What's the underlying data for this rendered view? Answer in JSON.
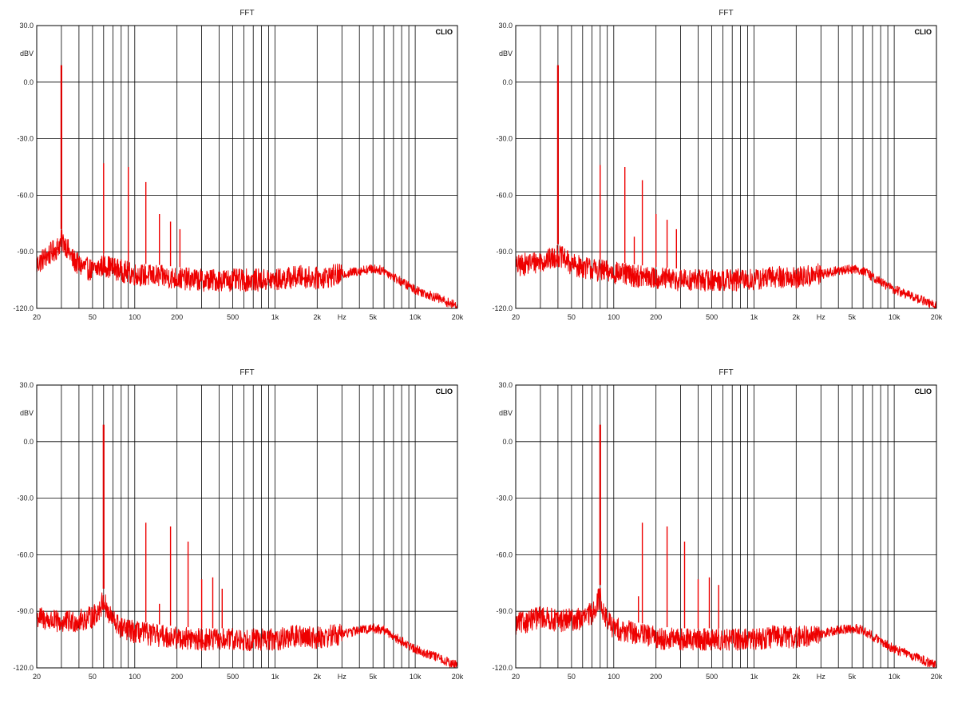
{
  "chart_data": [
    {
      "type": "line",
      "title": "FFT",
      "brand": "CLIO",
      "ylabel": "dBV",
      "xlabel": "Hz",
      "xscale": "log",
      "xlim": [
        20,
        20000
      ],
      "ylim": [
        -120,
        30
      ],
      "grid": true,
      "x_ticks": [
        "20",
        "50",
        "100",
        "200",
        "500",
        "1k",
        "2k",
        "5k",
        "10k",
        "20k"
      ],
      "y_ticks": [
        "30.0",
        "0.0",
        "-30.0",
        "-60.0",
        "-90.0",
        "-120.0"
      ],
      "series": [
        {
          "values": [
            [
              20,
              -97
            ],
            [
              22,
              -94
            ],
            [
              25,
              -91
            ],
            [
              28,
              -88
            ],
            [
              30,
              -84
            ],
            [
              32,
              -86
            ],
            [
              36,
              -94
            ],
            [
              40,
              -97
            ],
            [
              50,
              -100
            ],
            [
              60,
              -97
            ],
            [
              80,
              -100
            ],
            [
              100,
              -102
            ],
            [
              150,
              -103
            ],
            [
              200,
              -104
            ],
            [
              300,
              -105
            ],
            [
              500,
              -105
            ],
            [
              1000,
              -105
            ],
            [
              1500,
              -103
            ],
            [
              2000,
              -104
            ],
            [
              3000,
              -102
            ],
            [
              4000,
              -100
            ],
            [
              5000,
              -99
            ],
            [
              6000,
              -100
            ],
            [
              8000,
              -106
            ],
            [
              10000,
              -110
            ],
            [
              15000,
              -115
            ],
            [
              20000,
              -119
            ]
          ]
        },
        {
          "values": [
            [
              30,
              9
            ],
            [
              60,
              -43
            ],
            [
              90,
              -45
            ],
            [
              120,
              -53
            ],
            [
              150,
              -70
            ],
            [
              180,
              -74
            ],
            [
              210,
              -78
            ]
          ]
        }
      ]
    },
    {
      "type": "line",
      "title": "FFT",
      "brand": "CLIO",
      "ylabel": "dBV",
      "xlabel": "Hz",
      "xscale": "log",
      "xlim": [
        20,
        20000
      ],
      "ylim": [
        -120,
        30
      ],
      "grid": true,
      "x_ticks": [
        "20",
        "50",
        "100",
        "200",
        "500",
        "1k",
        "2k",
        "5k",
        "10k",
        "20k"
      ],
      "y_ticks": [
        "30.0",
        "0.0",
        "-30.0",
        "-60.0",
        "-90.0",
        "-120.0"
      ],
      "series": [
        {
          "values": [
            [
              20,
              -98
            ],
            [
              25,
              -96
            ],
            [
              30,
              -95
            ],
            [
              35,
              -94
            ],
            [
              40,
              -92
            ],
            [
              45,
              -94
            ],
            [
              50,
              -97
            ],
            [
              60,
              -98
            ],
            [
              80,
              -100
            ],
            [
              100,
              -101
            ],
            [
              150,
              -103
            ],
            [
              200,
              -104
            ],
            [
              300,
              -105
            ],
            [
              500,
              -105
            ],
            [
              1000,
              -105
            ],
            [
              1500,
              -103
            ],
            [
              2000,
              -104
            ],
            [
              3000,
              -102
            ],
            [
              4000,
              -100
            ],
            [
              5000,
              -99
            ],
            [
              6000,
              -100
            ],
            [
              8000,
              -106
            ],
            [
              10000,
              -110
            ],
            [
              15000,
              -115
            ],
            [
              20000,
              -119
            ]
          ]
        },
        {
          "values": [
            [
              40,
              9
            ],
            [
              80,
              -44
            ],
            [
              120,
              -45
            ],
            [
              140,
              -82
            ],
            [
              160,
              -52
            ],
            [
              200,
              -70
            ],
            [
              240,
              -73
            ],
            [
              280,
              -78
            ]
          ]
        }
      ]
    },
    {
      "type": "line",
      "title": "FFT",
      "brand": "CLIO",
      "ylabel": "dBV",
      "xlabel": "Hz",
      "xscale": "log",
      "xlim": [
        20,
        20000
      ],
      "ylim": [
        -120,
        30
      ],
      "grid": true,
      "x_ticks": [
        "20",
        "50",
        "100",
        "200",
        "500",
        "1k",
        "2k",
        "5k",
        "10k",
        "20k"
      ],
      "y_ticks": [
        "30.0",
        "0.0",
        "-30.0",
        "-60.0",
        "-90.0",
        "-120.0"
      ],
      "series": [
        {
          "values": [
            [
              20,
              -93
            ],
            [
              25,
              -95
            ],
            [
              30,
              -96
            ],
            [
              40,
              -95
            ],
            [
              50,
              -93
            ],
            [
              55,
              -90
            ],
            [
              60,
              -84
            ],
            [
              65,
              -92
            ],
            [
              80,
              -99
            ],
            [
              100,
              -101
            ],
            [
              150,
              -103
            ],
            [
              200,
              -104
            ],
            [
              300,
              -105
            ],
            [
              500,
              -105
            ],
            [
              1000,
              -105
            ],
            [
              1500,
              -103
            ],
            [
              2000,
              -104
            ],
            [
              3000,
              -102
            ],
            [
              4000,
              -100
            ],
            [
              5000,
              -99
            ],
            [
              6000,
              -100
            ],
            [
              8000,
              -106
            ],
            [
              10000,
              -110
            ],
            [
              15000,
              -115
            ],
            [
              20000,
              -119
            ]
          ]
        },
        {
          "values": [
            [
              60,
              9
            ],
            [
              120,
              -43
            ],
            [
              150,
              -86
            ],
            [
              180,
              -45
            ],
            [
              240,
              -53
            ],
            [
              300,
              -73
            ],
            [
              360,
              -72
            ],
            [
              420,
              -78
            ]
          ]
        }
      ]
    },
    {
      "type": "line",
      "title": "FFT",
      "brand": "CLIO",
      "ylabel": "dBV",
      "xlabel": "Hz",
      "xscale": "log",
      "xlim": [
        20,
        20000
      ],
      "ylim": [
        -120,
        30
      ],
      "grid": true,
      "x_ticks": [
        "20",
        "50",
        "100",
        "200",
        "500",
        "1k",
        "2k",
        "5k",
        "10k",
        "20k"
      ],
      "y_ticks": [
        "30.0",
        "0.0",
        "-30.0",
        "-60.0",
        "-90.0",
        "-120.0"
      ],
      "series": [
        {
          "values": [
            [
              20,
              -97
            ],
            [
              25,
              -95
            ],
            [
              30,
              -93
            ],
            [
              40,
              -95
            ],
            [
              60,
              -94
            ],
            [
              70,
              -91
            ],
            [
              80,
              -82
            ],
            [
              85,
              -92
            ],
            [
              100,
              -99
            ],
            [
              150,
              -102
            ],
            [
              200,
              -104
            ],
            [
              300,
              -105
            ],
            [
              500,
              -105
            ],
            [
              1000,
              -105
            ],
            [
              1500,
              -103
            ],
            [
              2000,
              -104
            ],
            [
              3000,
              -102
            ],
            [
              4000,
              -100
            ],
            [
              5000,
              -99
            ],
            [
              6000,
              -100
            ],
            [
              8000,
              -106
            ],
            [
              10000,
              -110
            ],
            [
              15000,
              -115
            ],
            [
              20000,
              -119
            ]
          ]
        },
        {
          "values": [
            [
              80,
              9
            ],
            [
              150,
              -82
            ],
            [
              160,
              -43
            ],
            [
              240,
              -45
            ],
            [
              320,
              -53
            ],
            [
              400,
              -73
            ],
            [
              480,
              -72
            ],
            [
              560,
              -76
            ]
          ]
        }
      ]
    }
  ]
}
